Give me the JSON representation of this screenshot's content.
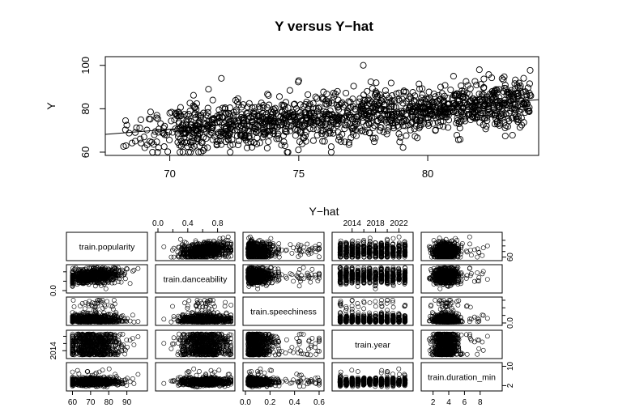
{
  "chart_data": [
    {
      "type": "scatter",
      "title": "Y versus Y−hat",
      "xlabel": "Y−hat",
      "ylabel": "Y",
      "xlim": [
        67.5,
        84.3
      ],
      "ylim": [
        58.5,
        104
      ],
      "xticks": [
        70,
        75,
        80
      ],
      "yticks": [
        60,
        80,
        100
      ],
      "fit_line": {
        "x": [
          67.5,
          84.3
        ],
        "y": [
          68.2,
          84.2
        ]
      },
      "points": {
        "count": 1400,
        "description_trend": "y increases with x; x mostly 70-84, y mostly 60-100",
        "sample": [
          [
            68.3,
            63
          ],
          [
            69.0,
            67
          ],
          [
            69.4,
            68
          ],
          [
            69.5,
            77
          ],
          [
            69.8,
            72
          ],
          [
            70.0,
            78
          ],
          [
            70.2,
            78
          ],
          [
            70.5,
            64
          ],
          [
            70.8,
            60
          ],
          [
            71.0,
            76
          ],
          [
            71.5,
            89
          ],
          [
            72.0,
            94
          ],
          [
            72.5,
            75
          ],
          [
            73.0,
            62
          ],
          [
            73.5,
            80
          ],
          [
            74.0,
            70
          ],
          [
            74.5,
            83
          ],
          [
            75.0,
            93
          ],
          [
            75.5,
            78
          ],
          [
            76.0,
            65
          ],
          [
            76.5,
            88
          ],
          [
            77.0,
            77
          ],
          [
            77.5,
            100
          ],
          [
            78.0,
            92
          ],
          [
            78.5,
            80
          ],
          [
            79.0,
            74
          ],
          [
            79.5,
            86
          ],
          [
            80.0,
            82
          ],
          [
            80.5,
            90
          ],
          [
            81.0,
            95
          ],
          [
            81.5,
            79
          ],
          [
            82.0,
            98
          ],
          [
            82.5,
            88
          ],
          [
            83.0,
            84
          ],
          [
            83.5,
            90
          ],
          [
            84.0,
            86
          ]
        ]
      }
    },
    {
      "type": "scatter-matrix",
      "variables": [
        "train.popularity",
        "train.danceability",
        "train.speechiness",
        "train.year",
        "train.duration_min"
      ],
      "ranges": {
        "train.popularity": [
          58,
          100
        ],
        "train.danceability": [
          0.0,
          1.0
        ],
        "train.speechiness": [
          0.0,
          0.62
        ],
        "train.year": [
          2011,
          2024
        ],
        "train.duration_min": [
          0.8,
          10.5
        ]
      },
      "top_axis": {
        "col2": [
          "0.0",
          "0.4",
          "0.8"
        ],
        "col4": [
          "2014",
          "2018",
          "2022"
        ]
      },
      "bottom_axis": {
        "col1": [
          "60",
          "70",
          "80",
          "90"
        ],
        "col3": [
          "0.0",
          "0.2",
          "0.4",
          "0.6"
        ],
        "col5": [
          "2",
          "4",
          "6",
          "8"
        ]
      },
      "left_axis": {
        "row2": [
          "0.0"
        ],
        "row4": [
          "2014"
        ]
      },
      "right_axis": {
        "row1": [
          "60"
        ],
        "row3": [
          "0.0"
        ],
        "row5": [
          "2",
          "10"
        ]
      }
    }
  ]
}
